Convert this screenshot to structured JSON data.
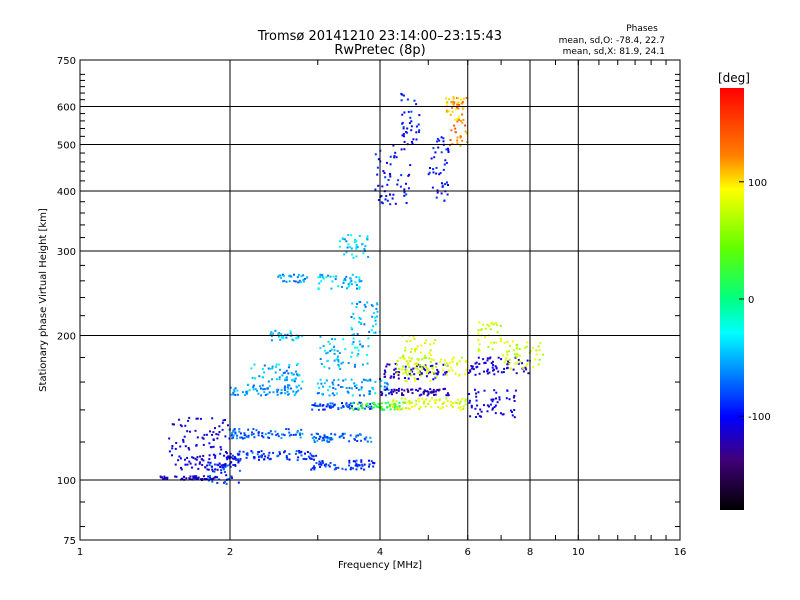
{
  "header": {
    "title": "Tromsø 20141210 23:14:00–23:15:43",
    "subtitle": "RwPretec (8p)",
    "phases_title": "Phases",
    "phases_o": "mean, sd,O: -78.4, 22.7",
    "phases_x": "mean, sd,X:  81.9, 24.1"
  },
  "colorbar": {
    "label": "[deg]",
    "ticks": [
      {
        "value": 100,
        "label": "100"
      },
      {
        "value": 0,
        "label": "0"
      },
      {
        "value": -100,
        "label": "-100"
      }
    ],
    "range": [
      -180,
      180
    ]
  },
  "chart_data": {
    "type": "scatter",
    "xlabel": "Frequency [MHz]",
    "ylabel": "Stationary phase Virtual Height [km]",
    "xscale": "log",
    "yscale": "log",
    "xlim": [
      1,
      16
    ],
    "ylim": [
      75,
      750
    ],
    "grid": true,
    "xticks": [
      {
        "value": 1,
        "label": "1"
      },
      {
        "value": 2,
        "label": "2"
      },
      {
        "value": 4,
        "label": "4"
      },
      {
        "value": 6,
        "label": "6"
      },
      {
        "value": 8,
        "label": "8"
      },
      {
        "value": 10,
        "label": "10"
      },
      {
        "value": 16,
        "label": "16"
      }
    ],
    "xgrid": [
      2,
      4,
      6,
      8,
      10
    ],
    "yticks": [
      {
        "value": 75,
        "label": "75"
      },
      {
        "value": 100,
        "label": "100"
      },
      {
        "value": 200,
        "label": "200"
      },
      {
        "value": 300,
        "label": "300"
      },
      {
        "value": 400,
        "label": "400"
      },
      {
        "value": 500,
        "label": "500"
      },
      {
        "value": 600,
        "label": "600"
      },
      {
        "value": 750,
        "label": "750"
      }
    ],
    "ygrid": [
      100,
      200,
      300,
      400,
      500,
      600
    ],
    "colorscale": "phase [deg], -180 to 180",
    "traces": [
      {
        "x": [
          1.45,
          1.9
        ],
        "y": [
          100,
          102
        ],
        "phase": -115
      },
      {
        "x": [
          1.55,
          2.1
        ],
        "y": [
          105,
          112
        ],
        "phase": -110
      },
      {
        "x": [
          1.5,
          2.0
        ],
        "y": [
          112,
          135
        ],
        "phase": -108
      },
      {
        "x": [
          1.8,
          2.1
        ],
        "y": [
          98,
          108
        ],
        "phase": -85
      },
      {
        "x": [
          2.0,
          3.0
        ],
        "y": [
          110,
          115
        ],
        "phase": -85
      },
      {
        "x": [
          2.0,
          2.8
        ],
        "y": [
          122,
          128
        ],
        "phase": -70
      },
      {
        "x": [
          2.0,
          2.8
        ],
        "y": [
          150,
          158
        ],
        "phase": -55
      },
      {
        "x": [
          2.2,
          2.8
        ],
        "y": [
          160,
          175
        ],
        "phase": -50
      },
      {
        "x": [
          2.4,
          2.8
        ],
        "y": [
          195,
          205
        ],
        "phase": -45
      },
      {
        "x": [
          2.5,
          2.9
        ],
        "y": [
          258,
          268
        ],
        "phase": -55
      },
      {
        "x": [
          2.9,
          3.9
        ],
        "y": [
          105,
          110
        ],
        "phase": -88
      },
      {
        "x": [
          2.9,
          3.9
        ],
        "y": [
          120,
          125
        ],
        "phase": -70
      },
      {
        "x": [
          2.9,
          3.9
        ],
        "y": [
          140,
          145
        ],
        "phase": -80
      },
      {
        "x": [
          3.0,
          4.2
        ],
        "y": [
          150,
          162
        ],
        "phase": -55
      },
      {
        "x": [
          3.0,
          3.8
        ],
        "y": [
          170,
          200
        ],
        "phase": -45
      },
      {
        "x": [
          3.0,
          3.7
        ],
        "y": [
          250,
          268
        ],
        "phase": -45
      },
      {
        "x": [
          3.3,
          3.8
        ],
        "y": [
          290,
          325
        ],
        "phase": -40
      },
      {
        "x": [
          3.5,
          4.0
        ],
        "y": [
          200,
          240
        ],
        "phase": -50
      },
      {
        "x": [
          3.5,
          4.5
        ],
        "y": [
          140,
          145
        ],
        "phase": 25
      },
      {
        "x": [
          4.0,
          5.5
        ],
        "y": [
          162,
          175
        ],
        "phase": -115
      },
      {
        "x": [
          4.0,
          5.5
        ],
        "y": [
          150,
          155
        ],
        "phase": -118
      },
      {
        "x": [
          4.2,
          6.0
        ],
        "y": [
          140,
          148
        ],
        "phase": 85
      },
      {
        "x": [
          4.4,
          5.2
        ],
        "y": [
          160,
          200
        ],
        "phase": 85
      },
      {
        "x": [
          4.3,
          6.0
        ],
        "y": [
          165,
          180
        ],
        "phase": 80
      },
      {
        "x": [
          3.9,
          4.6
        ],
        "y": [
          375,
          500
        ],
        "phase": -100
      },
      {
        "x": [
          4.4,
          4.8
        ],
        "y": [
          500,
          640
        ],
        "phase": -95
      },
      {
        "x": [
          5.0,
          5.5
        ],
        "y": [
          380,
          520
        ],
        "phase": -95
      },
      {
        "x": [
          5.5,
          6.0
        ],
        "y": [
          490,
          640
        ],
        "phase": 130
      },
      {
        "x": [
          5.4,
          5.9
        ],
        "y": [
          560,
          640
        ],
        "phase": 110
      },
      {
        "x": [
          6.0,
          7.5
        ],
        "y": [
          135,
          155
        ],
        "phase": -110
      },
      {
        "x": [
          6.0,
          8.0
        ],
        "y": [
          165,
          180
        ],
        "phase": -115
      },
      {
        "x": [
          6.3,
          7.0
        ],
        "y": [
          185,
          215
        ],
        "phase": 80
      },
      {
        "x": [
          7.0,
          8.5
        ],
        "y": [
          170,
          195
        ],
        "phase": 80
      }
    ]
  }
}
